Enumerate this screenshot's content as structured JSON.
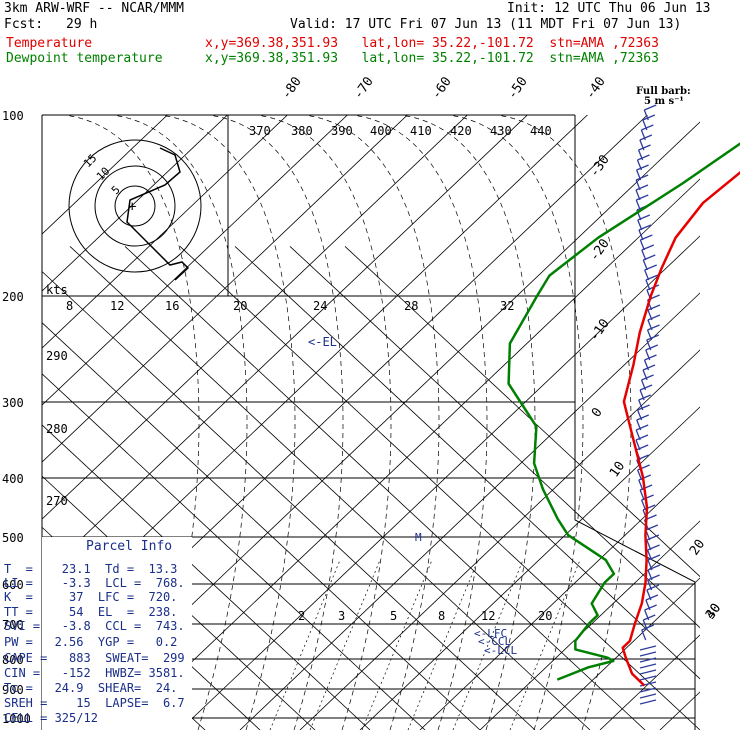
{
  "header": {
    "model": "3km ARW-WRF -- NCAR/MMM",
    "init": "Init: 12 UTC Thu 06 Jun 13",
    "fcst_label": "Fcst:",
    "fcst_value": "29 h",
    "valid": "Valid: 17 UTC Fri 07 Jun 13 (11 MDT Fri 07 Jun 13)",
    "temp_label": "Temperature",
    "temp_info": "x,y=369.38,351.93   lat,lon= 35.22,-101.72  stn=AMA ,72363",
    "dew_label": "Dewpoint temperature",
    "dew_info": "x,y=369.38,351.93   lat,lon= 35.22,-101.72  stn=AMA ,72363"
  },
  "parcel": {
    "title": "Parcel Info",
    "rows": [
      "T  =    23.1  Td =  13.3",
      "LI =    -3.3  LCL =  768.",
      "K  =     37  LFC =  720.",
      "TT =     54  EL  =  238.",
      "SVI =   -3.8  CCL =  743.",
      "PW =   2.56  YGP =   0.2",
      "CAPE =   883  SWEAT=  299",
      "CIN =   -152  HWBZ= 3581.",
      "Tc =   24.9  SHEAR=  24.",
      "SREH =    15  LAPSE=  6.7",
      "CELL = 325/12"
    ]
  },
  "chart_data": {
    "type": "line",
    "chart_kind": "skew-T log-P sounding",
    "pressure_levels": [
      "100",
      "200",
      "300",
      "400",
      "500",
      "600",
      "700",
      "800",
      "900",
      "1000"
    ],
    "isotherm_labels": [
      "-80",
      "-70",
      "-60",
      "-50",
      "-40",
      "-30",
      "-20",
      "-10",
      "0",
      "10",
      "20",
      "30",
      "40"
    ],
    "theta_labels": [
      "370",
      "380",
      "390",
      "400",
      "410",
      "420",
      "430",
      "440",
      "290",
      "280",
      "270"
    ],
    "mixing_ratio_labels": [
      "2",
      "3",
      "5",
      "8",
      "12",
      "20"
    ],
    "legend_top": [
      "kts",
      "8",
      "12",
      "16",
      "20",
      "24",
      "28",
      "32"
    ],
    "barb_legend": [
      "Full barb:",
      "5 m s⁻¹"
    ],
    "hodograph_labels": [
      "15",
      "10",
      "5"
    ],
    "annotations": [
      "<-EL",
      "<-LFC",
      "<-CCL",
      "<-LCL",
      "M"
    ],
    "series": [
      {
        "name": "Temperature",
        "color": "#e60000",
        "points": [
          [
            100,
            -62
          ],
          [
            120,
            -65.5
          ],
          [
            140,
            -67
          ],
          [
            160,
            -65
          ],
          [
            180,
            -61
          ],
          [
            200,
            -57
          ],
          [
            230,
            -51
          ],
          [
            260,
            -45
          ],
          [
            300,
            -38.5
          ],
          [
            350,
            -27
          ],
          [
            400,
            -17
          ],
          [
            450,
            -9
          ],
          [
            500,
            -3
          ],
          [
            550,
            3
          ],
          [
            600,
            8
          ],
          [
            650,
            12
          ],
          [
            700,
            15
          ],
          [
            750,
            18
          ],
          [
            770,
            18
          ],
          [
            800,
            21
          ],
          [
            850,
            26
          ],
          [
            890,
            31.5
          ]
        ]
      },
      {
        "name": "Dewpoint temperature",
        "color": "#008000",
        "points": [
          [
            100,
            -70
          ],
          [
            130,
            -76
          ],
          [
            160,
            -82
          ],
          [
            185,
            -84
          ],
          [
            200,
            -82
          ],
          [
            240,
            -77
          ],
          [
            280,
            -68
          ],
          [
            330,
            -52
          ],
          [
            380,
            -44
          ],
          [
            420,
            -36
          ],
          [
            470,
            -26
          ],
          [
            500,
            -20
          ],
          [
            550,
            -6
          ],
          [
            580,
            -1
          ],
          [
            600,
            -1
          ],
          [
            650,
            1
          ],
          [
            680,
            5
          ],
          [
            700,
            5
          ],
          [
            750,
            6
          ],
          [
            775,
            8
          ],
          [
            800,
            17
          ],
          [
            810,
            19
          ],
          [
            830,
            15
          ],
          [
            870,
            11
          ]
        ]
      }
    ]
  }
}
